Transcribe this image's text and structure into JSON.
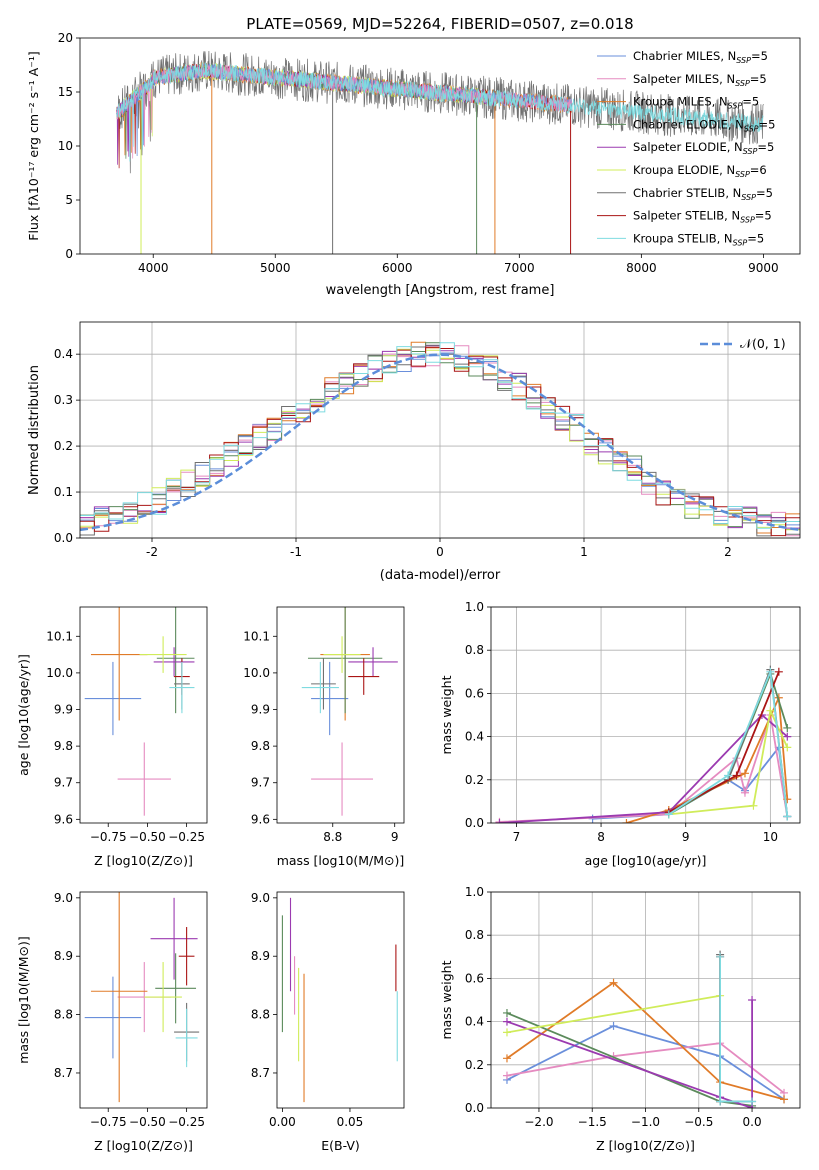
{
  "colors": {
    "chabrier_miles": "#6a8fdb",
    "salpeter_miles": "#e58bc0",
    "kroupa_miles": "#e07b28",
    "chabrier_elodie": "#5b8a5b",
    "salpeter_elodie": "#9b3ab0",
    "kroupa_elodie": "#d0ec5a",
    "chabrier_stelib": "#707070",
    "salpeter_stelib": "#aa1515",
    "kroupa_stelib": "#7fdbe0",
    "normal": "#5b8dd9"
  },
  "legend_spectrum": [
    "Chabrier MILES, N_SSP=5",
    "Salpeter MILES, N_SSP=5",
    "Kroupa MILES, N_SSP=5",
    "Chabrier ELODIE, N_SSP=5",
    "Salpeter ELODIE, N_SSP=5",
    "Kroupa ELODIE, N_SSP=6",
    "Chabrier STELIB, N_SSP=5",
    "Salpeter STELIB, N_SSP=5",
    "Kroupa STELIB, N_SSP=5"
  ],
  "chart_data": [
    {
      "type": "line",
      "title": "PLATE=0569, MJD=52264, FIBERID=0507, z=0.018",
      "xlabel": "wavelength [Angstrom, rest frame]",
      "ylabel": "Flux [f_λ 10^-17 erg cm^-2 s^-1 A^-1]",
      "xlim": [
        3400,
        9300
      ],
      "ylim": [
        0,
        20
      ],
      "xticks": [
        4000,
        5000,
        6000,
        7000,
        8000,
        9000
      ],
      "yticks": [
        0,
        5,
        10,
        15,
        20
      ],
      "legend": "top-right",
      "series": [
        {
          "name": "Chabrier MILES, N_SSP=5",
          "x": [
            3700,
            3900,
            4000,
            4200,
            4500,
            5000,
            5500,
            6000,
            6500,
            7000,
            7400
          ],
          "values": [
            13,
            15,
            16,
            17,
            16.5,
            16,
            15.5,
            15,
            14.5,
            14,
            13.5
          ]
        },
        {
          "name": "Chabrier STELIB, N_SSP=5",
          "x": [
            3700,
            3900,
            4000,
            4200,
            4500,
            5000,
            5500,
            6000,
            6500,
            7000,
            7500,
            8000,
            8500,
            9000
          ],
          "values": [
            12,
            15,
            16,
            17,
            16.5,
            16,
            15.5,
            15,
            14.5,
            14,
            13.5,
            13,
            12.5,
            12
          ]
        }
      ]
    },
    {
      "type": "bar",
      "title": "",
      "xlabel": "(data-model)/error",
      "ylabel": "Normed distribution",
      "xlim": [
        -2.5,
        2.5
      ],
      "ylim": [
        0,
        0.47
      ],
      "xticks": [
        -2,
        -1,
        0,
        1,
        2
      ],
      "yticks": [
        0.0,
        0.1,
        0.2,
        0.3,
        0.4
      ],
      "legend": "top-right",
      "legend_label": "𝒩(0, 1)",
      "bin_width": 0.1,
      "histogram_center": [
        0.03,
        0.04,
        0.05,
        0.06,
        0.07,
        0.08,
        0.1,
        0.12,
        0.14,
        0.16,
        0.18,
        0.2,
        0.22,
        0.24,
        0.26,
        0.28,
        0.3,
        0.32,
        0.34,
        0.36,
        0.37,
        0.38,
        0.39,
        0.4,
        0.4,
        0.4,
        0.39,
        0.38,
        0.37,
        0.35,
        0.33,
        0.31,
        0.29,
        0.26,
        0.24,
        0.21,
        0.19,
        0.17,
        0.15,
        0.12,
        0.1,
        0.08,
        0.07,
        0.06,
        0.05,
        0.04,
        0.04,
        0.03,
        0.03,
        0.03
      ]
    },
    {
      "type": "scatter",
      "xlabel": "Z [log10(Z/Z⊙)]",
      "ylabel": "age  [log10(age/yr)]",
      "xlim": [
        -0.93,
        -0.12
      ],
      "ylim": [
        9.59,
        10.18
      ],
      "xticks": [
        -0.75,
        -0.5,
        -0.25
      ],
      "xticklabels": [
        "−0.75",
        "−0.50",
        "−0.25"
      ],
      "yticks": [
        9.6,
        9.7,
        9.8,
        9.9,
        10.0,
        10.1
      ],
      "points": [
        {
          "series": "chabrier_miles",
          "x": -0.72,
          "y": 9.93,
          "xerr": 0.18,
          "yerr": 0.1
        },
        {
          "series": "salpeter_miles",
          "x": -0.52,
          "y": 9.71,
          "xerr": 0.17,
          "yerr": 0.1
        },
        {
          "series": "kroupa_miles",
          "x": -0.68,
          "y": 10.05,
          "xerr": 0.18,
          "yerr": 0.18
        },
        {
          "series": "chabrier_elodie",
          "x": -0.32,
          "y": 10.04,
          "xerr": 0.12,
          "yerr": 0.15
        },
        {
          "series": "salpeter_elodie",
          "x": -0.33,
          "y": 10.03,
          "xerr": 0.13,
          "yerr": 0.04
        },
        {
          "series": "kroupa_elodie",
          "x": -0.4,
          "y": 10.05,
          "xerr": 0.15,
          "yerr": 0.05
        },
        {
          "series": "chabrier_stelib",
          "x": -0.28,
          "y": 9.97,
          "xerr": 0.05,
          "yerr": 0.07
        },
        {
          "series": "salpeter_stelib",
          "x": -0.28,
          "y": 9.99,
          "xerr": 0.05,
          "yerr": 0.05
        },
        {
          "series": "kroupa_stelib",
          "x": -0.28,
          "y": 9.96,
          "xerr": 0.08,
          "yerr": 0.07
        }
      ]
    },
    {
      "type": "scatter",
      "xlabel": "mass [log10(M/M⊙)]",
      "ylabel": "",
      "xlim": [
        8.62,
        9.03
      ],
      "ylim": [
        9.59,
        10.18
      ],
      "xticks": [
        8.8,
        9.0
      ],
      "yticks": [
        9.6,
        9.7,
        9.8,
        9.9,
        10.0,
        10.1
      ],
      "points": [
        {
          "series": "chabrier_miles",
          "x": 8.79,
          "y": 9.93,
          "xerr": 0.06,
          "yerr": 0.1
        },
        {
          "series": "salpeter_miles",
          "x": 8.83,
          "y": 9.71,
          "xerr": 0.1,
          "yerr": 0.1
        },
        {
          "series": "kroupa_miles",
          "x": 8.84,
          "y": 10.05,
          "xerr": 0.08,
          "yerr": 0.18
        },
        {
          "series": "chabrier_elodie",
          "x": 8.84,
          "y": 10.04,
          "xerr": 0.12,
          "yerr": 0.15
        },
        {
          "series": "salpeter_elodie",
          "x": 8.93,
          "y": 10.03,
          "xerr": 0.08,
          "yerr": 0.04
        },
        {
          "series": "kroupa_elodie",
          "x": 8.83,
          "y": 10.05,
          "xerr": 0.06,
          "yerr": 0.05
        },
        {
          "series": "chabrier_stelib",
          "x": 8.77,
          "y": 9.97,
          "xerr": 0.04,
          "yerr": 0.07
        },
        {
          "series": "salpeter_stelib",
          "x": 8.9,
          "y": 9.99,
          "xerr": 0.05,
          "yerr": 0.05
        },
        {
          "series": "kroupa_stelib",
          "x": 8.76,
          "y": 9.96,
          "xerr": 0.06,
          "yerr": 0.07
        }
      ]
    },
    {
      "type": "line",
      "xlabel": "age  [log10(age/yr)]",
      "ylabel": "mass weight",
      "xlim": [
        6.7,
        10.35
      ],
      "ylim": [
        0,
        1.0
      ],
      "xticks": [
        7,
        8,
        9,
        10
      ],
      "yticks": [
        0.0,
        0.2,
        0.4,
        0.6,
        0.8,
        1.0
      ],
      "series": [
        {
          "name": "chabrier_miles",
          "x": [
            7.9,
            8.8,
            9.5,
            9.7,
            10.1,
            10.2
          ],
          "values": [
            0.02,
            0.04,
            0.2,
            0.15,
            0.35,
            0.03
          ]
        },
        {
          "name": "salpeter_miles",
          "x": [
            6.8,
            8.8,
            9.6,
            9.7,
            10.0,
            10.2
          ],
          "values": [
            0.005,
            0.04,
            0.3,
            0.14,
            0.5,
            0.03
          ]
        },
        {
          "name": "kroupa_miles",
          "x": [
            8.3,
            8.8,
            9.7,
            10.1,
            10.2
          ],
          "values": [
            0.0,
            0.06,
            0.23,
            0.58,
            0.11
          ]
        },
        {
          "name": "chabrier_elodie",
          "x": [
            8.8,
            9.5,
            10.0,
            10.2
          ],
          "values": [
            0.04,
            0.2,
            0.69,
            0.44
          ]
        },
        {
          "name": "salpeter_elodie",
          "x": [
            6.8,
            8.8,
            9.9,
            10.2
          ],
          "values": [
            0.0,
            0.05,
            0.5,
            0.4
          ]
        },
        {
          "name": "kroupa_elodie",
          "x": [
            8.8,
            9.8,
            10.0,
            10.2
          ],
          "values": [
            0.04,
            0.08,
            0.52,
            0.35
          ]
        },
        {
          "name": "chabrier_stelib",
          "x": [
            8.8,
            9.5,
            10.0,
            10.2
          ],
          "values": [
            0.05,
            0.2,
            0.71,
            0.03
          ]
        },
        {
          "name": "salpeter_stelib",
          "x": [
            8.8,
            9.6,
            10.1
          ],
          "values": [
            0.05,
            0.22,
            0.7
          ]
        },
        {
          "name": "kroupa_stelib",
          "x": [
            8.8,
            9.5,
            10.0,
            10.2
          ],
          "values": [
            0.04,
            0.22,
            0.7,
            0.03
          ]
        }
      ]
    },
    {
      "type": "scatter",
      "xlabel": "Z [log10(Z/Z⊙)]",
      "ylabel": "mass [log10(M/M⊙)]",
      "xlim": [
        -0.93,
        -0.12
      ],
      "ylim": [
        8.64,
        9.01
      ],
      "xticks": [
        -0.75,
        -0.5,
        -0.25
      ],
      "xticklabels": [
        "−0.75",
        "−0.50",
        "−0.25"
      ],
      "yticks": [
        8.7,
        8.8,
        8.9,
        9.0
      ],
      "points": [
        {
          "series": "chabrier_miles",
          "x": -0.72,
          "y": 8.795,
          "xerr": 0.18,
          "yerr": 0.07
        },
        {
          "series": "salpeter_miles",
          "x": -0.52,
          "y": 8.83,
          "xerr": 0.17,
          "yerr": 0.06
        },
        {
          "series": "kroupa_miles",
          "x": -0.68,
          "y": 8.84,
          "xerr": 0.18,
          "yerr": 0.19
        },
        {
          "series": "chabrier_elodie",
          "x": -0.32,
          "y": 8.845,
          "xerr": 0.13,
          "yerr": 0.06
        },
        {
          "series": "salpeter_elodie",
          "x": -0.33,
          "y": 8.93,
          "xerr": 0.15,
          "yerr": 0.07
        },
        {
          "series": "kroupa_elodie",
          "x": -0.4,
          "y": 8.83,
          "xerr": 0.12,
          "yerr": 0.06
        },
        {
          "series": "chabrier_stelib",
          "x": -0.25,
          "y": 8.77,
          "xerr": 0.08,
          "yerr": 0.05
        },
        {
          "series": "salpeter_stelib",
          "x": -0.25,
          "y": 8.9,
          "xerr": 0.05,
          "yerr": 0.05
        },
        {
          "series": "kroupa_stelib",
          "x": -0.25,
          "y": 8.76,
          "xerr": 0.07,
          "yerr": 0.05
        }
      ]
    },
    {
      "type": "scatter",
      "xlabel": "E(B-V)",
      "ylabel": "",
      "xlim": [
        -0.004,
        0.09
      ],
      "ylim": [
        8.64,
        9.01
      ],
      "xticks": [
        0.0,
        0.05
      ],
      "xticklabels": [
        "0.00",
        "0.05"
      ],
      "yticks": [
        8.7,
        8.8,
        8.9,
        9.0
      ],
      "points": [
        {
          "series": "chabrier_elodie",
          "x": 0.0,
          "y": 8.87,
          "yerr": 0.1
        },
        {
          "series": "salpeter_elodie",
          "x": 0.006,
          "y": 8.92,
          "yerr": 0.08
        },
        {
          "series": "salpeter_miles",
          "x": 0.009,
          "y": 8.85,
          "yerr": 0.05
        },
        {
          "series": "kroupa_elodie",
          "x": 0.012,
          "y": 8.8,
          "yerr": 0.08
        },
        {
          "series": "kroupa_miles",
          "x": 0.016,
          "y": 8.76,
          "yerr": 0.11
        },
        {
          "series": "salpeter_stelib",
          "x": 0.084,
          "y": 8.88,
          "yerr": 0.04
        },
        {
          "series": "kroupa_stelib",
          "x": 0.085,
          "y": 8.78,
          "yerr": 0.06
        }
      ]
    },
    {
      "type": "line",
      "xlabel": "Z [log10(Z/Z⊙)]",
      "ylabel": "mass weight",
      "xlim": [
        -2.45,
        0.45
      ],
      "ylim": [
        0,
        1.0
      ],
      "xticks": [
        -2.0,
        -1.5,
        -1.0,
        -0.5,
        0.0
      ],
      "xticklabels": [
        "−2.0",
        "−1.5",
        "−1.0",
        "−0.5",
        "0.0"
      ],
      "yticks": [
        0.0,
        0.2,
        0.4,
        0.6,
        0.8,
        1.0
      ],
      "series": [
        {
          "name": "chabrier_miles",
          "x": [
            -2.3,
            -1.3,
            -0.3,
            0.3
          ],
          "values": [
            0.13,
            0.38,
            0.24,
            0.04
          ]
        },
        {
          "name": "salpeter_miles",
          "x": [
            -2.3,
            -1.3,
            -0.3,
            0.3
          ],
          "values": [
            0.15,
            0.24,
            0.3,
            0.07
          ]
        },
        {
          "name": "kroupa_miles",
          "x": [
            -2.3,
            -1.3,
            -0.3,
            0.3
          ],
          "values": [
            0.23,
            0.58,
            0.12,
            0.04
          ]
        },
        {
          "name": "chabrier_elodie",
          "x": [
            -2.3,
            -0.3,
            0.0
          ],
          "values": [
            0.44,
            0.03,
            0.01
          ]
        },
        {
          "name": "salpeter_elodie",
          "x": [
            -2.3,
            -0.3,
            0.0,
            0.0
          ],
          "values": [
            0.4,
            0.05,
            0.0,
            0.5
          ]
        },
        {
          "name": "kroupa_elodie",
          "x": [
            -2.3,
            -0.3
          ],
          "values": [
            0.35,
            0.52
          ]
        },
        {
          "name": "chabrier_stelib",
          "x": [
            -0.3,
            -0.3,
            0.0
          ],
          "values": [
            0.71,
            0.03,
            0.03
          ]
        },
        {
          "name": "salpeter_stelib",
          "x": [
            -0.3,
            -0.3
          ],
          "values": [
            0.7,
            0.03
          ]
        },
        {
          "name": "kroupa_stelib",
          "x": [
            -0.3,
            -0.3,
            0.0
          ],
          "values": [
            0.7,
            0.03,
            0.03
          ]
        }
      ]
    }
  ]
}
